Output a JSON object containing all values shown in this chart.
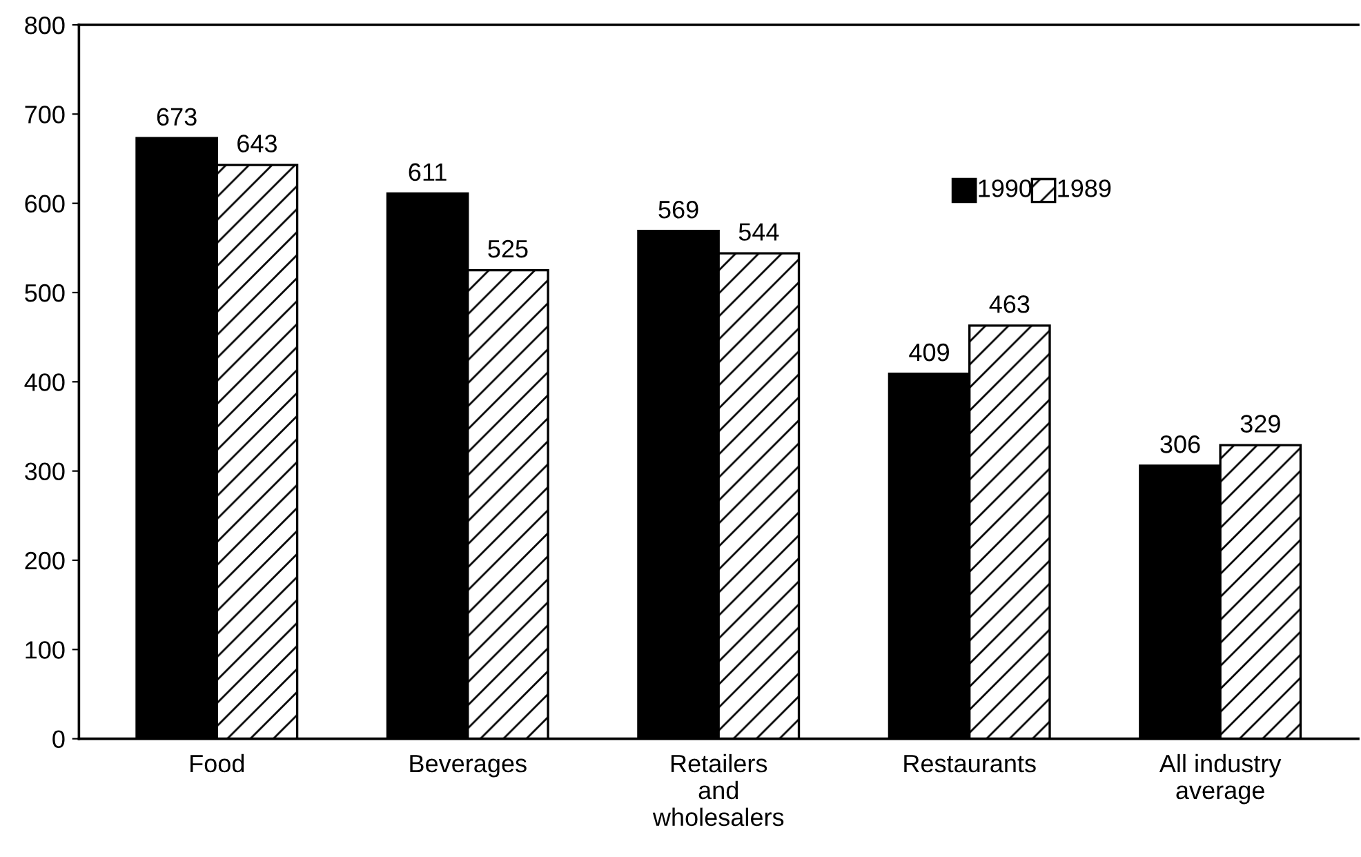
{
  "chart_data": {
    "type": "bar",
    "categories": [
      "Food",
      "Beverages",
      "Retailers\nand\nwholesalers",
      "Restaurants",
      "All industry\naverage"
    ],
    "series": [
      {
        "name": "1990",
        "color": "#000000",
        "values": [
          673,
          611,
          569,
          409,
          306
        ]
      },
      {
        "name": "1989",
        "color": "#ffffff",
        "values": [
          643,
          525,
          544,
          463,
          329
        ]
      }
    ],
    "ylim": [
      0,
      800
    ],
    "yticks": [
      0,
      100,
      200,
      300,
      400,
      500,
      600,
      700,
      800
    ],
    "data_labels": true,
    "grid": false,
    "legend": "top right"
  }
}
